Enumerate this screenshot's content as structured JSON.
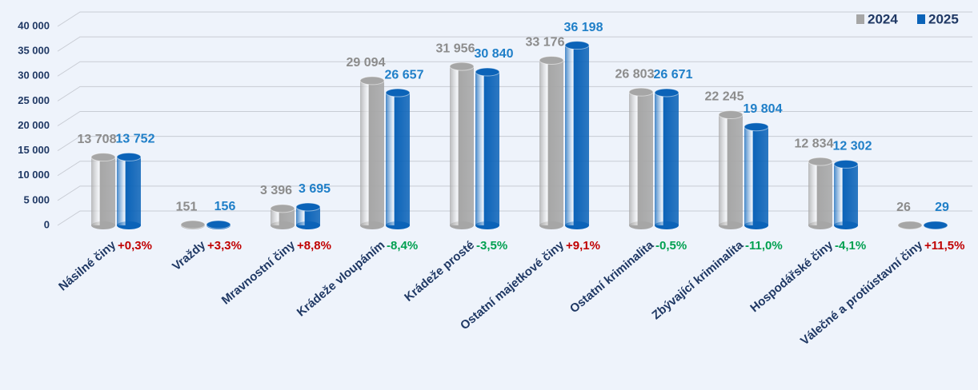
{
  "chart_data": {
    "type": "bar",
    "categories": [
      "Násilné činy",
      "Vraždy",
      "Mravnostní činy",
      "Krádeže vloupáním",
      "Krádeže prosté",
      "Ostatní majetkové činy",
      "Ostatní kriminalita",
      "Zbývající kriminalita",
      "Hospodářské činy",
      "Válečné a protiústavní činy"
    ],
    "series": [
      {
        "name": "2024",
        "color": "#a6a6a6",
        "values": [
          13708,
          151,
          3396,
          29094,
          31956,
          33176,
          26803,
          22245,
          12834,
          26
        ],
        "value_labels": [
          "13 708",
          "151",
          "3 396",
          "29 094",
          "31 956",
          "33 176",
          "26 803",
          "22 245",
          "12 834",
          "26"
        ]
      },
      {
        "name": "2025",
        "color": "#0b63b8",
        "values": [
          13752,
          156,
          3695,
          26657,
          30840,
          36198,
          26671,
          19804,
          12302,
          29
        ],
        "value_labels": [
          "13 752",
          "156",
          "3 695",
          "26 657",
          "30 840",
          "36 198",
          "26 671",
          "19 804",
          "12 302",
          "29"
        ]
      }
    ],
    "annotations": [
      {
        "text": "+0,3%",
        "color": "#c00000"
      },
      {
        "text": "+3,3%",
        "color": "#c00000"
      },
      {
        "text": "+8,8%",
        "color": "#c00000"
      },
      {
        "text": "-8,4%",
        "color": "#00a050"
      },
      {
        "text": "-3,5%",
        "color": "#00a050"
      },
      {
        "text": "+9,1%",
        "color": "#c00000"
      },
      {
        "text": "-0,5%",
        "color": "#00a050"
      },
      {
        "text": "-11,0%",
        "color": "#00a050"
      },
      {
        "text": "-4,1%",
        "color": "#00a050"
      },
      {
        "text": "+11,5%",
        "color": "#c00000"
      }
    ],
    "ylim": [
      0,
      40000
    ],
    "yticks": [
      {
        "value": 0,
        "label": "0"
      },
      {
        "value": 5000,
        "label": "5 000"
      },
      {
        "value": 10000,
        "label": "10 000"
      },
      {
        "value": 15000,
        "label": "15 000"
      },
      {
        "value": 20000,
        "label": "20 000"
      },
      {
        "value": 25000,
        "label": "25 000"
      },
      {
        "value": 30000,
        "label": "30 000"
      },
      {
        "value": 35000,
        "label": "35 000"
      },
      {
        "value": 40000,
        "label": "40 000"
      }
    ],
    "grid": true,
    "legend": "top-right"
  }
}
